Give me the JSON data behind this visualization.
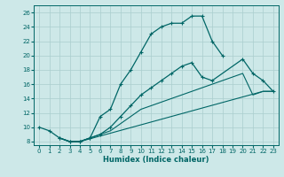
{
  "xlabel": "Humidex (Indice chaleur)",
  "background_color": "#cde8e8",
  "grid_color": "#aacece",
  "line_color": "#006666",
  "xlim": [
    -0.5,
    23.5
  ],
  "ylim": [
    7.5,
    27
  ],
  "xticks": [
    0,
    1,
    2,
    3,
    4,
    5,
    6,
    7,
    8,
    9,
    10,
    11,
    12,
    13,
    14,
    15,
    16,
    17,
    18,
    19,
    20,
    21,
    22,
    23
  ],
  "yticks": [
    8,
    10,
    12,
    14,
    16,
    18,
    20,
    22,
    24,
    26
  ],
  "line1_x": [
    0,
    1,
    2,
    3,
    4,
    5,
    6,
    7,
    8,
    9,
    10,
    11,
    12,
    13,
    14,
    15,
    16,
    17,
    18
  ],
  "line1_y": [
    10,
    9.5,
    8.5,
    8,
    8,
    8.5,
    11.5,
    12.5,
    16,
    18,
    20.5,
    23,
    24,
    24.5,
    24.5,
    25.5,
    25.5,
    22,
    20
  ],
  "line2_x": [
    2,
    3,
    4,
    5,
    6,
    7,
    8,
    9,
    10,
    11,
    12,
    13,
    14,
    15,
    16,
    17,
    20,
    21,
    22,
    23
  ],
  "line2_y": [
    8.5,
    8,
    8,
    8.5,
    9,
    10,
    11.5,
    13,
    14.5,
    15.5,
    16.5,
    17.5,
    18.5,
    19,
    17,
    16.5,
    19.5,
    17.5,
    16.5,
    15
  ],
  "line3_x": [
    2,
    3,
    4,
    5,
    6,
    7,
    8,
    9,
    10,
    11,
    12,
    13,
    14,
    15,
    16,
    17,
    18,
    19,
    20,
    21,
    22,
    23
  ],
  "line3_y": [
    8.5,
    8,
    8,
    8.5,
    9,
    9.5,
    10.5,
    11.5,
    12.5,
    13,
    13.5,
    14,
    14.5,
    15,
    15.5,
    16,
    16.5,
    17,
    17.5,
    14.5,
    15,
    15
  ],
  "line4_x": [
    2,
    3,
    4,
    22,
    23
  ],
  "line4_y": [
    8.5,
    8,
    8,
    15,
    15
  ]
}
